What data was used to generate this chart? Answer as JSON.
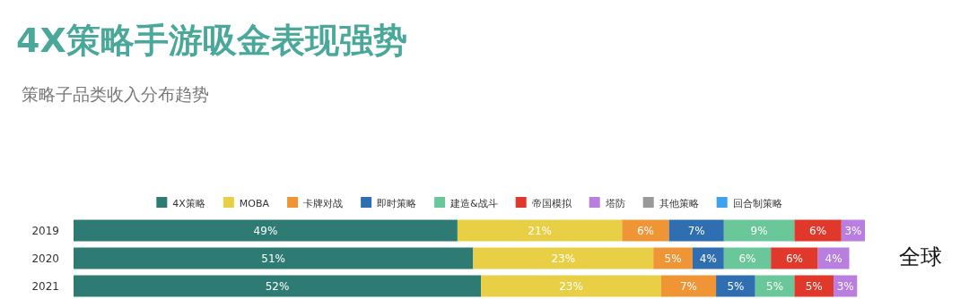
{
  "chart_data": {
    "type": "bar",
    "orientation": "horizontal",
    "stacked": true,
    "title": "4X策略手游吸金表现强势",
    "subtitle": "策略子品类收入分布趋势",
    "categories": [
      "2019",
      "2020",
      "2021"
    ],
    "series": [
      {
        "name": "4X策略",
        "color": "#2e7b74",
        "values": [
          49,
          51,
          52
        ],
        "value_labels": [
          "49%",
          "51%",
          "52%"
        ]
      },
      {
        "name": "MOBA",
        "color": "#e8cf45",
        "values": [
          21,
          23,
          23
        ],
        "value_labels": [
          "21%",
          "23%",
          "23%"
        ]
      },
      {
        "name": "卡牌对战",
        "color": "#ef9535",
        "values": [
          6,
          5,
          7
        ],
        "value_labels": [
          "6%",
          "5%",
          "7%"
        ]
      },
      {
        "name": "即时策略",
        "color": "#2f6fb1",
        "values": [
          7,
          4,
          5
        ],
        "value_labels": [
          "7%",
          "4%",
          "5%"
        ]
      },
      {
        "name": "建造&战斗",
        "color": "#69c799",
        "values": [
          9,
          6,
          5
        ],
        "value_labels": [
          "9%",
          "6%",
          "5%"
        ]
      },
      {
        "name": "帝国模拟",
        "color": "#e0392b",
        "values": [
          6,
          6,
          5
        ],
        "value_labels": [
          "6%",
          "6%",
          "5%"
        ]
      },
      {
        "name": "塔防",
        "color": "#b87ee0",
        "values": [
          3,
          4,
          3
        ],
        "value_labels": [
          "3%",
          "4%",
          "3%"
        ]
      },
      {
        "name": "其他策略",
        "color": "#999999",
        "values": [
          null,
          null,
          null
        ]
      },
      {
        "name": "回合制策略",
        "color": "#3fa2ef",
        "values": [
          null,
          null,
          null
        ]
      }
    ],
    "tick_labels": "y",
    "legend": "top",
    "annotations": [
      "全球"
    ]
  }
}
